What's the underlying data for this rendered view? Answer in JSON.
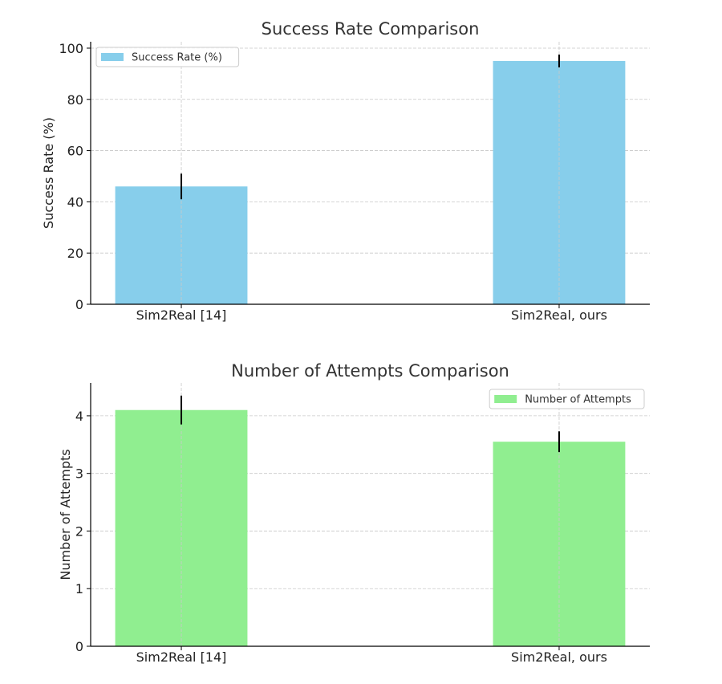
{
  "chart_data": [
    {
      "type": "bar",
      "title": "Success Rate Comparison",
      "xlabel": "",
      "ylabel": "Success Rate (%)",
      "categories": [
        "Sim2Real [14]",
        "Sim2Real, ours"
      ],
      "series": [
        {
          "name": "Success Rate (%)",
          "values": [
            46,
            95
          ],
          "errors": [
            5,
            2.5
          ],
          "color": "#87CEEB"
        }
      ],
      "ylim": [
        0,
        102.5
      ],
      "yticks": [
        0,
        20,
        40,
        60,
        80,
        100
      ],
      "grid": true,
      "legend_position": "upper left"
    },
    {
      "type": "bar",
      "title": "Number of Attempts Comparison",
      "xlabel": "",
      "ylabel": "Number of Attempts",
      "categories": [
        "Sim2Real [14]",
        "Sim2Real, ours"
      ],
      "series": [
        {
          "name": "Number of Attempts",
          "values": [
            4.1,
            3.55
          ],
          "errors": [
            0.25,
            0.18
          ],
          "color": "#90EE90"
        }
      ],
      "ylim": [
        0,
        4.57
      ],
      "yticks": [
        0,
        1,
        2,
        3,
        4
      ],
      "grid": true,
      "legend_position": "upper right"
    }
  ]
}
